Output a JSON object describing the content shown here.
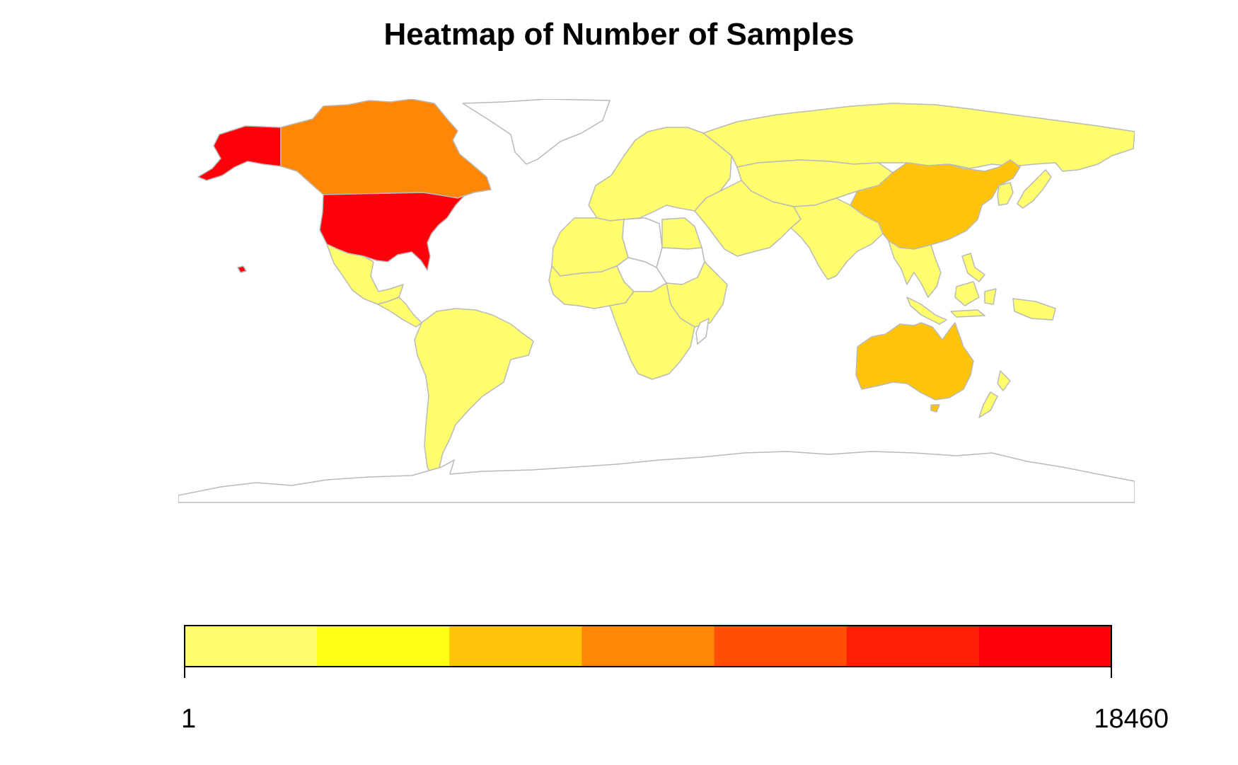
{
  "title": "Heatmap of Number of Samples",
  "legend": {
    "min_label": "1",
    "max_label": "18460",
    "colors": [
      "#FFFF6E",
      "#FFFF14",
      "#FFC30A",
      "#FF8705",
      "#FF5005",
      "#FF1E05",
      "#FF000A"
    ]
  },
  "colors": {
    "border": "#b9b9b9",
    "background": "#ffffff",
    "no_data": "#ffffff"
  },
  "chart_data": {
    "type": "heatmap",
    "title": "Heatmap of Number of Samples",
    "scale": {
      "min": 1,
      "max": 18460,
      "bins": 7
    },
    "regions": [
      {
        "name": "United States",
        "bin": 7
      },
      {
        "name": "Alaska",
        "bin": 7
      },
      {
        "name": "Canada",
        "bin": 4
      },
      {
        "name": "China",
        "bin": 3
      },
      {
        "name": "Australia",
        "bin": 3
      },
      {
        "name": "Mexico",
        "bin": 1
      },
      {
        "name": "Central America",
        "bin": 1
      },
      {
        "name": "South America",
        "bin": 1
      },
      {
        "name": "Europe",
        "bin": 1
      },
      {
        "name": "Russia",
        "bin": 1
      },
      {
        "name": "Central Asia",
        "bin": 1
      },
      {
        "name": "Middle East",
        "bin": 1
      },
      {
        "name": "India",
        "bin": 1
      },
      {
        "name": "Southeast Asia",
        "bin": 1
      },
      {
        "name": "Japan",
        "bin": 1
      },
      {
        "name": "Korea",
        "bin": 1
      },
      {
        "name": "Indonesia",
        "bin": 1
      },
      {
        "name": "New Zealand",
        "bin": 1
      },
      {
        "name": "North Africa",
        "bin": 1
      },
      {
        "name": "West Africa",
        "bin": 1
      },
      {
        "name": "East Africa",
        "bin": 1
      },
      {
        "name": "Southern Africa",
        "bin": 1
      },
      {
        "name": "Libya",
        "bin": 0
      },
      {
        "name": "Sudan",
        "bin": 0
      },
      {
        "name": "Chad",
        "bin": 0
      },
      {
        "name": "Greenland",
        "bin": 0
      },
      {
        "name": "Antarctica",
        "bin": 0
      }
    ]
  }
}
